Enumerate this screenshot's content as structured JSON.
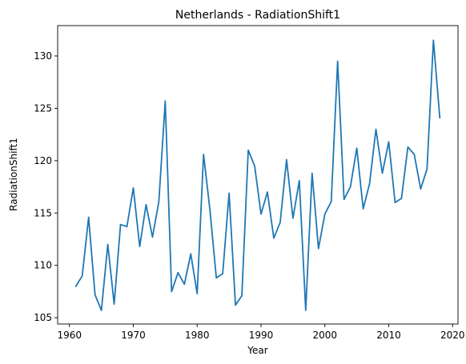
{
  "chart_data": {
    "type": "line",
    "title": "Netherlands - RadiationShift1",
    "xlabel": "Year",
    "ylabel": "RadiationShift1",
    "xlim": [
      1958.15,
      2020.85
    ],
    "ylim": [
      104.4,
      132.9
    ],
    "xticks": [
      1960,
      1970,
      1980,
      1990,
      2000,
      2010,
      2020
    ],
    "yticks": [
      105,
      110,
      115,
      120,
      125,
      130
    ],
    "grid": false,
    "legend": "none",
    "series_color": "#1f77b4",
    "x": [
      1961,
      1962,
      1963,
      1964,
      1965,
      1966,
      1967,
      1968,
      1969,
      1970,
      1971,
      1972,
      1973,
      1974,
      1975,
      1976,
      1977,
      1978,
      1979,
      1980,
      1981,
      1982,
      1983,
      1984,
      1985,
      1986,
      1987,
      1988,
      1989,
      1990,
      1991,
      1992,
      1993,
      1994,
      1995,
      1996,
      1997,
      1998,
      1999,
      2000,
      2001,
      2002,
      2003,
      2004,
      2005,
      2006,
      2007,
      2008,
      2009,
      2010,
      2011,
      2012,
      2013,
      2014,
      2015,
      2016,
      2017,
      2018
    ],
    "values": [
      108.0,
      109.0,
      114.6,
      107.2,
      105.7,
      112.0,
      106.3,
      113.9,
      113.7,
      117.4,
      111.8,
      115.8,
      112.7,
      116.1,
      125.7,
      107.5,
      109.3,
      108.2,
      111.1,
      107.3,
      120.6,
      115.3,
      108.8,
      109.2,
      116.9,
      106.2,
      107.1,
      121.0,
      119.5,
      114.9,
      117.0,
      112.6,
      114.1,
      120.1,
      114.5,
      118.1,
      105.7,
      118.8,
      111.6,
      114.9,
      116.1,
      129.5,
      116.3,
      117.5,
      121.2,
      115.4,
      117.8,
      123.0,
      118.8,
      121.8,
      116.0,
      116.4,
      121.3,
      120.6,
      117.3,
      119.2,
      131.5,
      124.1
    ]
  }
}
